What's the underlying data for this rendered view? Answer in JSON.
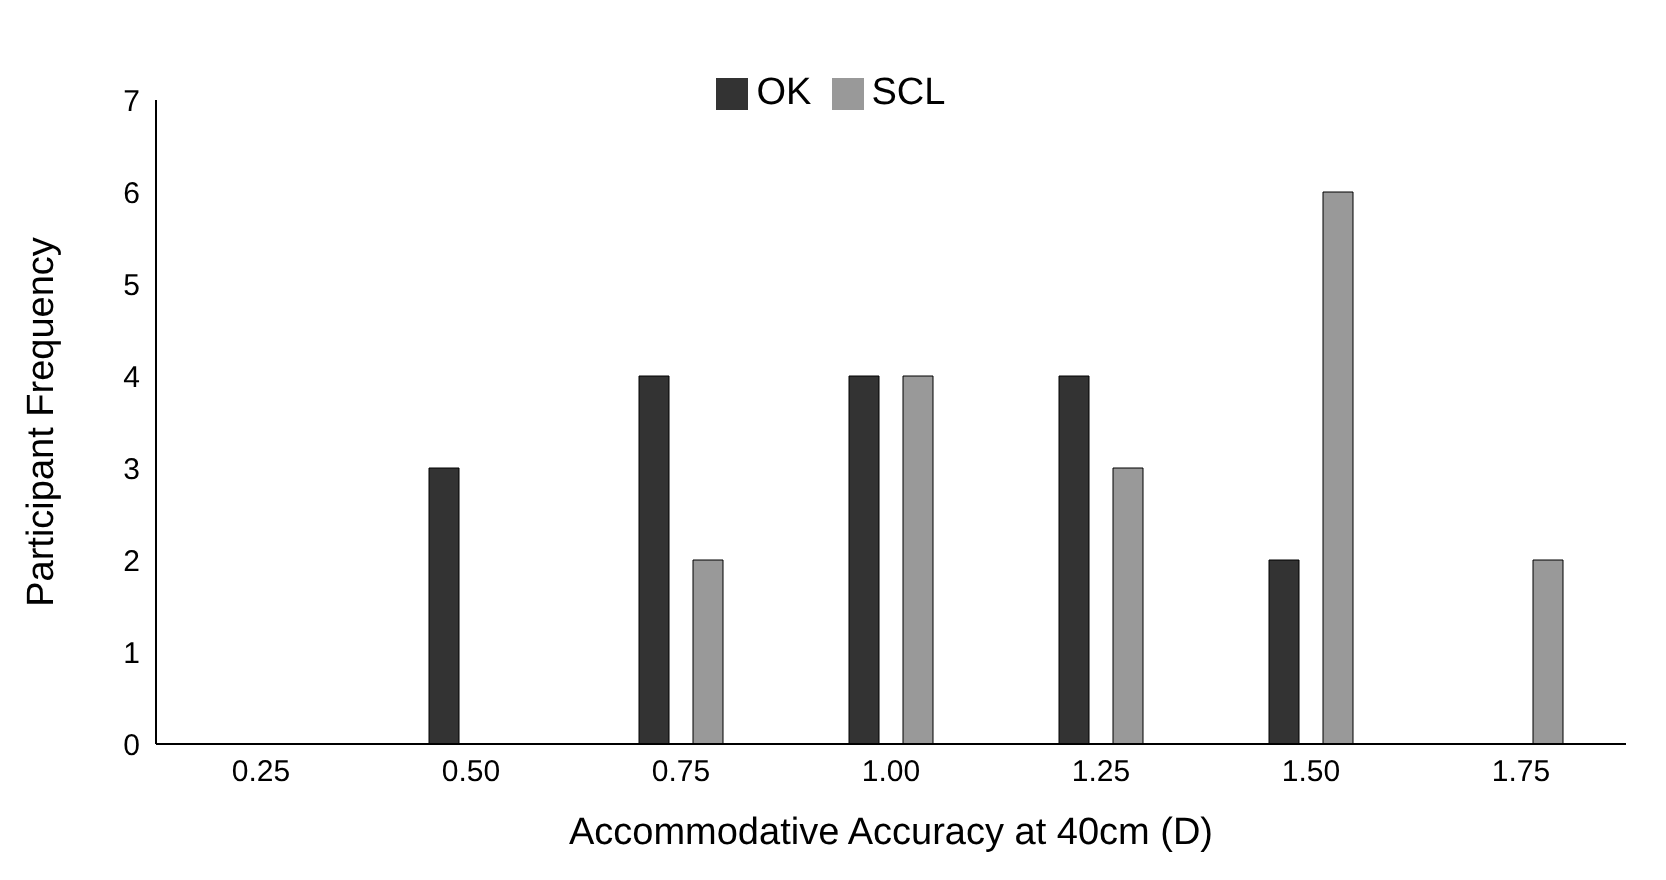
{
  "chart_data": {
    "type": "bar",
    "xlabel": "Accommodative Accuracy at 40cm (D)",
    "ylabel": "Participant Frequency",
    "categories": [
      "0.25",
      "0.50",
      "0.75",
      "1.00",
      "1.25",
      "1.50",
      "1.75"
    ],
    "series": [
      {
        "name": "OK",
        "color": "#333333",
        "values": [
          0,
          3,
          4,
          4,
          4,
          2,
          0
        ]
      },
      {
        "name": "SCL",
        "color": "#999999",
        "values": [
          0,
          0,
          2,
          4,
          3,
          6,
          2
        ]
      }
    ],
    "ylim": [
      0,
      7
    ],
    "yticks": [
      0,
      1,
      2,
      3,
      4,
      5,
      6,
      7
    ],
    "grid": false,
    "legend": "top"
  }
}
